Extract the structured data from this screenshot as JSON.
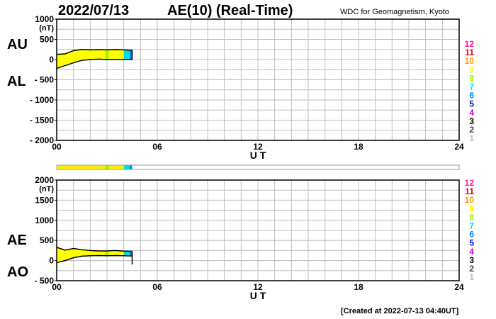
{
  "header": {
    "date": "2022/07/13",
    "title": "AE(10) (Real-Time)",
    "org": "WDC for Geomagnetism, Kyoto"
  },
  "footer": {
    "created": "[Created at 2022-07-13 04:40UT]"
  },
  "colors": {
    "fill": "#ffff00",
    "legend": {
      "12": "#ff1493",
      "11": "#dd0000",
      "10": "#ff9900",
      "9": "#ffee00",
      "8": "#aaee00",
      "7": "#00dddd",
      "6": "#0088ff",
      "5": "#0000cc",
      "4": "#cc00cc",
      "3": "#000000",
      "2": "#444444",
      "1": "#bbbbbb"
    }
  },
  "legend_labels": [
    "12",
    "11",
    "10",
    "9",
    "8",
    "7",
    "6",
    "5",
    "4",
    "3",
    "2",
    "1"
  ],
  "chart_data": [
    {
      "type": "area",
      "panel": "AU/AL",
      "labels": [
        "AU",
        "AL"
      ],
      "ylim": [
        -2000,
        1000
      ],
      "y_unit": "(nT)",
      "yticks": [
        1000,
        500,
        0,
        -500,
        -1000,
        -1500,
        -2000
      ],
      "ytick_labels": [
        "1000",
        "500",
        "0",
        "- 500",
        "- 1000",
        "- 1500",
        "- 2000"
      ],
      "xlim": [
        0,
        24
      ],
      "xticks": [
        0,
        6,
        12,
        18,
        24
      ],
      "xtick_labels": [
        "00",
        "06",
        "12",
        "18",
        "24"
      ],
      "xlabel": "U T",
      "grid": true,
      "series": [
        {
          "name": "AU",
          "x": [
            0,
            0.5,
            1,
            1.5,
            2,
            2.5,
            3,
            3.5,
            4,
            4.5
          ],
          "values": [
            130,
            140,
            220,
            250,
            240,
            245,
            240,
            250,
            240,
            230
          ]
        },
        {
          "name": "AL",
          "x": [
            0,
            0.5,
            1,
            1.5,
            2,
            2.5,
            3,
            3.5,
            4,
            4.5
          ],
          "values": [
            -220,
            -150,
            -80,
            -20,
            0,
            10,
            0,
            0,
            5,
            0
          ]
        }
      ]
    },
    {
      "type": "area",
      "panel": "AE/AO",
      "labels": [
        "AE",
        "AO"
      ],
      "ylim": [
        -500,
        2000
      ],
      "y_unit": "(nT)",
      "yticks": [
        2000,
        1500,
        1000,
        500,
        0,
        -500
      ],
      "ytick_labels": [
        "2000",
        "1500",
        "1000",
        "500",
        "0",
        "- 500"
      ],
      "xlim": [
        0,
        24
      ],
      "xticks": [
        0,
        6,
        12,
        18,
        24
      ],
      "xtick_labels": [
        "00",
        "06",
        "12",
        "18",
        "24"
      ],
      "xlabel": "U T",
      "grid": true,
      "series": [
        {
          "name": "AE",
          "x": [
            0,
            0.5,
            1,
            1.5,
            2,
            2.5,
            3,
            3.5,
            4,
            4.5
          ],
          "values": [
            330,
            260,
            300,
            270,
            250,
            240,
            240,
            250,
            235,
            230
          ]
        },
        {
          "name": "AO",
          "x": [
            0,
            0.5,
            1,
            1.5,
            2,
            2.5,
            3,
            3.5,
            4,
            4.5
          ],
          "values": [
            -50,
            0,
            70,
            110,
            120,
            125,
            120,
            125,
            120,
            115
          ]
        }
      ]
    }
  ],
  "station_bar": [
    {
      "from": 0,
      "to": 2.9,
      "stations": "9"
    },
    {
      "from": 2.9,
      "to": 3.1,
      "stations": "8"
    },
    {
      "from": 3.1,
      "to": 4.0,
      "stations": "9"
    },
    {
      "from": 4.0,
      "to": 4.35,
      "stations": "7"
    },
    {
      "from": 4.35,
      "to": 4.5,
      "stations": "6"
    }
  ]
}
